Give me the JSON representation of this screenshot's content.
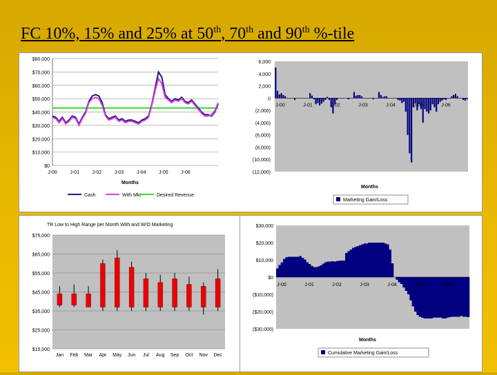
{
  "slide": {
    "title_parts": [
      "FC 10%, 15% and 25% at 50",
      "th",
      ", 70",
      "th",
      " and 90",
      "th",
      " %-tile"
    ]
  },
  "colors": {
    "cash": "#1a1a80",
    "withmkt": "#e040e0",
    "desired": "#33dd33",
    "navy": "#000080",
    "candle": "#ee0000",
    "plot_bg": "#c0c0c0"
  },
  "chart_data": [
    {
      "id": "revenue",
      "type": "line",
      "ylim": [
        0,
        80000
      ],
      "yticks": [
        "$0",
        "$10,000",
        "$20,000",
        "$30,000",
        "$40,000",
        "$50,000",
        "$60,000",
        "$70,000",
        "$80,000"
      ],
      "xtick_labels": [
        "J-00",
        "J-01",
        "J-02",
        "J-03",
        "J-04",
        "J-05",
        "J-06"
      ],
      "xlabel": "Months",
      "series": [
        {
          "name": "Cash",
          "values": [
            37000,
            36000,
            33000,
            36000,
            32000,
            34000,
            37000,
            36000,
            31000,
            36000,
            40000,
            48000,
            52000,
            53000,
            52000,
            47000,
            38000,
            35000,
            36000,
            37000,
            34000,
            35000,
            33000,
            34000,
            34000,
            33000,
            32000,
            34000,
            35000,
            37000,
            46000,
            58000,
            70000,
            66000,
            53000,
            50000,
            48000,
            50000,
            49000,
            51000,
            48000,
            47000,
            49000,
            46000,
            43000,
            40000,
            38000,
            38000,
            37000,
            40000,
            46000
          ]
        },
        {
          "name": "With Mkt",
          "values": [
            36000,
            35000,
            32000,
            35000,
            31000,
            33000,
            36000,
            35000,
            30000,
            35000,
            39000,
            47000,
            50000,
            51000,
            50000,
            45000,
            37000,
            34000,
            35000,
            36000,
            33000,
            34000,
            32000,
            33000,
            33000,
            32000,
            31000,
            33000,
            34000,
            36000,
            45000,
            56000,
            65000,
            61000,
            51000,
            49000,
            47000,
            49000,
            48000,
            50000,
            47000,
            46000,
            48000,
            45000,
            42000,
            39000,
            37000,
            37000,
            38000,
            41000,
            47000
          ]
        },
        {
          "name": "Desired Revenue",
          "values": [
            43000,
            43000
          ]
        }
      ]
    },
    {
      "id": "marketing_gain",
      "type": "bar",
      "ylim": [
        -12000,
        6000
      ],
      "yticks": [
        "(12,000)",
        "(10,000)",
        "(8,000)",
        "(6,000)",
        "(4,000)",
        "(2,000)",
        "0",
        "2,000",
        "4,000",
        "6,000"
      ],
      "xtick_labels": [
        "J-00",
        "J-01",
        "J-02",
        "J-03",
        "J-04",
        "J-05",
        "J-06"
      ],
      "xlabel": "Months",
      "legend": "Marketing Gain/Loss",
      "values": [
        5000,
        1200,
        600,
        800,
        500,
        300,
        0,
        0,
        0,
        0,
        -300,
        0,
        0,
        0,
        0,
        0,
        0,
        0,
        800,
        400,
        -200,
        -1000,
        -800,
        -1200,
        -900,
        -600,
        -300,
        200,
        -300,
        -1500,
        -2500,
        -1000,
        -300,
        0,
        0,
        0,
        0,
        0,
        -200,
        0,
        0,
        1000,
        400,
        500,
        500,
        300,
        0,
        0,
        0,
        0,
        0,
        -200,
        0,
        0,
        1000,
        500,
        200,
        300,
        300,
        0,
        0,
        0,
        0,
        0,
        -300,
        -400,
        -800,
        -600,
        -2200,
        -6000,
        -9000,
        -10500,
        -1500,
        -800,
        -2000,
        -1000,
        -1800,
        -4000,
        -1800,
        -2200,
        -2500,
        -2000,
        -1000,
        -1500,
        -2200,
        -1000,
        -600,
        -400,
        -200,
        -300,
        0,
        0,
        300,
        500,
        700,
        300,
        0,
        0,
        -300,
        -400,
        -200
      ]
    },
    {
      "id": "range",
      "type": "candlestick",
      "title": "TR Low to High Range per Month With and W/O Marketing",
      "ylim": [
        15000,
        75000
      ],
      "yticks": [
        "$15,000",
        "$25,000",
        "$35,000",
        "$45,000",
        "$55,000",
        "$65,000",
        "$75,000"
      ],
      "categories": [
        "Jan",
        "Feb",
        "Mar",
        "Apr",
        "May",
        "Jun",
        "Jul",
        "Aug",
        "Sep",
        "Oct",
        "Nov",
        "Dec"
      ],
      "low": [
        37000,
        37000,
        37000,
        35000,
        35000,
        35000,
        35000,
        35000,
        35000,
        35000,
        33000,
        35000
      ],
      "high": [
        48000,
        49000,
        48000,
        62000,
        67000,
        61000,
        55000,
        54000,
        55000,
        53000,
        50000,
        57000
      ],
      "open": [
        44000,
        44000,
        44000,
        60000,
        63000,
        58000,
        52000,
        50000,
        52000,
        49000,
        48000,
        52000
      ],
      "close": [
        38000,
        38000,
        37000,
        37000,
        37000,
        37000,
        37000,
        37000,
        37000,
        37000,
        37000,
        37000
      ]
    },
    {
      "id": "cumulative",
      "type": "area",
      "ylim": [
        -30000,
        30000
      ],
      "yticks": [
        "($30,000)",
        "($20,000)",
        "($10,000)",
        "$0",
        "$10,000",
        "$20,000",
        "$30,000"
      ],
      "xtick_labels": [
        "J-00",
        "J-01",
        "J-02",
        "J-03",
        "J-04",
        "J-05",
        "J-06"
      ],
      "xlabel": "Months",
      "legend": "Cumulative Marketing Gain/Loss",
      "values": [
        5000,
        7000,
        8500,
        10500,
        11500,
        11800,
        11800,
        11800,
        11800,
        11800,
        12200,
        11200,
        10200,
        8600,
        7600,
        6500,
        5800,
        5800,
        6200,
        6800,
        7800,
        8600,
        9000,
        9000,
        9200,
        9000,
        9300,
        9500,
        9600,
        9600,
        14000,
        15000,
        16000,
        17000,
        17500,
        18000,
        18500,
        19000,
        19500,
        19500,
        20000,
        20000,
        20000,
        20000,
        20000,
        20000,
        20000,
        19500,
        19000,
        16000,
        8000,
        0,
        -1500,
        -3000,
        -4000,
        -6000,
        -8000,
        -10000,
        -13500,
        -17000,
        -20000,
        -22000,
        -23000,
        -23500,
        -24000,
        -24000,
        -24000,
        -24000,
        -23500,
        -23500,
        -23500,
        -23500,
        -24000,
        -24000,
        -23500,
        -23200,
        -23000,
        -23000,
        -23000,
        -23000,
        -22500,
        -23000,
        -23000,
        -23200
      ]
    }
  ]
}
